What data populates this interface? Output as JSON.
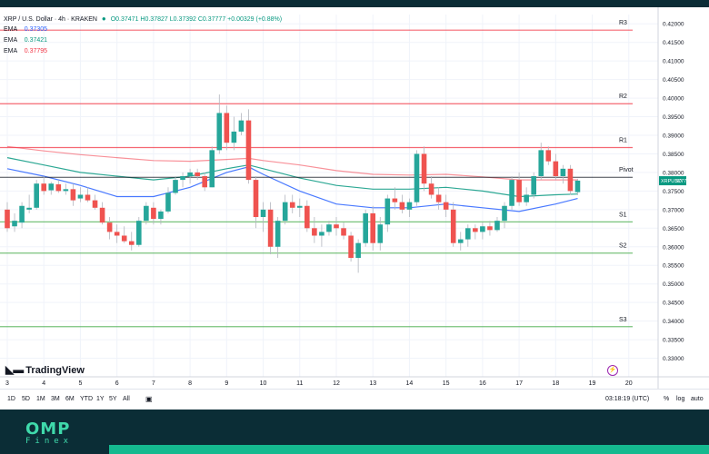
{
  "header": {
    "symbol_title": "XRP / U.S. Dollar · 4h · KRAKEN",
    "ohlc": "O0.37471 H0.37827 L0.37392 C0.37777 +0.00329 (+0.88%)"
  },
  "indicators": [
    {
      "label": "EMA",
      "value": "0.37305",
      "color": "#2962ff"
    },
    {
      "label": "EMA",
      "value": "0.37421",
      "color": "#089981"
    },
    {
      "label": "EMA",
      "value": "0.37795",
      "color": "#f23645"
    }
  ],
  "toolbar": {
    "timeframes": [
      "1D",
      "5D",
      "1M",
      "3M",
      "6M",
      "YTD",
      "1Y",
      "5Y",
      "All"
    ],
    "clock": "03:18:19 (UTC)",
    "percent": "%",
    "log": "log",
    "auto": "auto"
  },
  "watermark": "TradingView",
  "price_tag": {
    "symbol": "XRPUSD",
    "value": "0.37777"
  },
  "brand": {
    "name": "OMP",
    "sub": "Finex"
  },
  "chart_data": {
    "type": "candlestick",
    "title": "XRP / U.S. Dollar · 4h · KRAKEN",
    "ylim": [
      0.325,
      0.4225
    ],
    "xlim": [
      3,
      21
    ],
    "y_ticks": [
      0.33,
      0.335,
      0.34,
      0.345,
      0.35,
      0.355,
      0.36,
      0.365,
      0.37,
      0.375,
      0.38,
      0.385,
      0.39,
      0.395,
      0.4,
      0.405,
      0.41,
      0.415,
      0.42
    ],
    "y_tick_labels": [
      "0.33000",
      "0.33500",
      "0.34000",
      "0.34500",
      "0.35000",
      "0.35500",
      "0.36000",
      "0.36500",
      "0.37000",
      "0.37500",
      "0.38000",
      "0.38500",
      "0.39000",
      "0.39500",
      "0.40000",
      "0.40500",
      "0.41000",
      "0.41500",
      "0.42000"
    ],
    "x_ticks": [
      3,
      4,
      5,
      6,
      7,
      8,
      9,
      10,
      11,
      12,
      13,
      14,
      15,
      16,
      17,
      18,
      19,
      20
    ],
    "x_tick_labels": [
      "3",
      "4",
      "5",
      "6",
      "7",
      "8",
      "9",
      "10",
      "11",
      "12",
      "13",
      "14",
      "15",
      "16",
      "17",
      "18",
      "19",
      "20"
    ],
    "pivot_levels": [
      {
        "label": "R3",
        "value": 0.4183,
        "color": "#f23645"
      },
      {
        "label": "R2",
        "value": 0.3985,
        "color": "#f23645"
      },
      {
        "label": "R1",
        "value": 0.3867,
        "color": "#f23645"
      },
      {
        "label": "Pivot",
        "value": 0.3787,
        "color": "#131722"
      },
      {
        "label": "S1",
        "value": 0.3667,
        "color": "#4caf50"
      },
      {
        "label": "S2",
        "value": 0.3583,
        "color": "#4caf50"
      },
      {
        "label": "S3",
        "value": 0.3385,
        "color": "#4caf50"
      }
    ],
    "candles": [
      {
        "x": 3.0,
        "o": 0.37,
        "h": 0.372,
        "l": 0.364,
        "c": 0.365
      },
      {
        "x": 3.2,
        "o": 0.3655,
        "h": 0.369,
        "l": 0.364,
        "c": 0.367
      },
      {
        "x": 3.4,
        "o": 0.3665,
        "h": 0.372,
        "l": 0.365,
        "c": 0.371
      },
      {
        "x": 3.6,
        "o": 0.37,
        "h": 0.374,
        "l": 0.369,
        "c": 0.3705
      },
      {
        "x": 3.8,
        "o": 0.3705,
        "h": 0.378,
        "l": 0.37,
        "c": 0.377
      },
      {
        "x": 4.0,
        "o": 0.377,
        "h": 0.379,
        "l": 0.374,
        "c": 0.375
      },
      {
        "x": 4.2,
        "o": 0.3752,
        "h": 0.3775,
        "l": 0.374,
        "c": 0.377
      },
      {
        "x": 4.4,
        "o": 0.3768,
        "h": 0.378,
        "l": 0.3745,
        "c": 0.375
      },
      {
        "x": 4.6,
        "o": 0.375,
        "h": 0.377,
        "l": 0.374,
        "c": 0.3755
      },
      {
        "x": 4.8,
        "o": 0.3755,
        "h": 0.377,
        "l": 0.371,
        "c": 0.3725
      },
      {
        "x": 5.0,
        "o": 0.373,
        "h": 0.376,
        "l": 0.372,
        "c": 0.374
      },
      {
        "x": 5.2,
        "o": 0.374,
        "h": 0.376,
        "l": 0.372,
        "c": 0.3725
      },
      {
        "x": 5.4,
        "o": 0.3725,
        "h": 0.374,
        "l": 0.37,
        "c": 0.3705
      },
      {
        "x": 5.6,
        "o": 0.3705,
        "h": 0.372,
        "l": 0.366,
        "c": 0.3665
      },
      {
        "x": 5.8,
        "o": 0.3665,
        "h": 0.368,
        "l": 0.362,
        "c": 0.364
      },
      {
        "x": 6.0,
        "o": 0.364,
        "h": 0.366,
        "l": 0.361,
        "c": 0.363
      },
      {
        "x": 6.2,
        "o": 0.363,
        "h": 0.3655,
        "l": 0.361,
        "c": 0.3615
      },
      {
        "x": 6.4,
        "o": 0.3615,
        "h": 0.364,
        "l": 0.359,
        "c": 0.3605
      },
      {
        "x": 6.6,
        "o": 0.3605,
        "h": 0.368,
        "l": 0.36,
        "c": 0.367
      },
      {
        "x": 6.8,
        "o": 0.367,
        "h": 0.372,
        "l": 0.366,
        "c": 0.371
      },
      {
        "x": 7.0,
        "o": 0.3705,
        "h": 0.372,
        "l": 0.366,
        "c": 0.3675
      },
      {
        "x": 7.2,
        "o": 0.3675,
        "h": 0.37,
        "l": 0.366,
        "c": 0.3695
      },
      {
        "x": 7.4,
        "o": 0.3695,
        "h": 0.376,
        "l": 0.369,
        "c": 0.3745
      },
      {
        "x": 7.6,
        "o": 0.3745,
        "h": 0.379,
        "l": 0.374,
        "c": 0.378
      },
      {
        "x": 7.8,
        "o": 0.378,
        "h": 0.38,
        "l": 0.376,
        "c": 0.379
      },
      {
        "x": 8.0,
        "o": 0.379,
        "h": 0.381,
        "l": 0.377,
        "c": 0.38
      },
      {
        "x": 8.2,
        "o": 0.38,
        "h": 0.381,
        "l": 0.378,
        "c": 0.379
      },
      {
        "x": 8.4,
        "o": 0.379,
        "h": 0.38,
        "l": 0.375,
        "c": 0.376
      },
      {
        "x": 8.6,
        "o": 0.376,
        "h": 0.387,
        "l": 0.376,
        "c": 0.386
      },
      {
        "x": 8.8,
        "o": 0.386,
        "h": 0.401,
        "l": 0.385,
        "c": 0.396
      },
      {
        "x": 9.0,
        "o": 0.396,
        "h": 0.398,
        "l": 0.386,
        "c": 0.388
      },
      {
        "x": 9.2,
        "o": 0.388,
        "h": 0.395,
        "l": 0.386,
        "c": 0.391
      },
      {
        "x": 9.4,
        "o": 0.391,
        "h": 0.396,
        "l": 0.39,
        "c": 0.394
      },
      {
        "x": 9.6,
        "o": 0.394,
        "h": 0.397,
        "l": 0.377,
        "c": 0.378
      },
      {
        "x": 9.8,
        "o": 0.378,
        "h": 0.379,
        "l": 0.365,
        "c": 0.368
      },
      {
        "x": 10.0,
        "o": 0.368,
        "h": 0.372,
        "l": 0.364,
        "c": 0.37
      },
      {
        "x": 10.2,
        "o": 0.37,
        "h": 0.372,
        "l": 0.358,
        "c": 0.36
      },
      {
        "x": 10.4,
        "o": 0.36,
        "h": 0.368,
        "l": 0.357,
        "c": 0.367
      },
      {
        "x": 10.6,
        "o": 0.367,
        "h": 0.374,
        "l": 0.366,
        "c": 0.372
      },
      {
        "x": 10.8,
        "o": 0.372,
        "h": 0.374,
        "l": 0.369,
        "c": 0.3705
      },
      {
        "x": 11.0,
        "o": 0.3705,
        "h": 0.373,
        "l": 0.368,
        "c": 0.371
      },
      {
        "x": 11.2,
        "o": 0.371,
        "h": 0.3725,
        "l": 0.364,
        "c": 0.365
      },
      {
        "x": 11.4,
        "o": 0.365,
        "h": 0.368,
        "l": 0.361,
        "c": 0.363
      },
      {
        "x": 11.6,
        "o": 0.363,
        "h": 0.366,
        "l": 0.36,
        "c": 0.364
      },
      {
        "x": 11.8,
        "o": 0.364,
        "h": 0.367,
        "l": 0.363,
        "c": 0.366
      },
      {
        "x": 12.0,
        "o": 0.366,
        "h": 0.368,
        "l": 0.363,
        "c": 0.365
      },
      {
        "x": 12.2,
        "o": 0.365,
        "h": 0.3665,
        "l": 0.362,
        "c": 0.363
      },
      {
        "x": 12.4,
        "o": 0.363,
        "h": 0.364,
        "l": 0.356,
        "c": 0.357
      },
      {
        "x": 12.6,
        "o": 0.357,
        "h": 0.362,
        "l": 0.353,
        "c": 0.361
      },
      {
        "x": 12.8,
        "o": 0.361,
        "h": 0.37,
        "l": 0.36,
        "c": 0.369
      },
      {
        "x": 13.0,
        "o": 0.369,
        "h": 0.371,
        "l": 0.359,
        "c": 0.361
      },
      {
        "x": 13.2,
        "o": 0.361,
        "h": 0.368,
        "l": 0.359,
        "c": 0.366
      },
      {
        "x": 13.4,
        "o": 0.366,
        "h": 0.374,
        "l": 0.364,
        "c": 0.373
      },
      {
        "x": 13.6,
        "o": 0.373,
        "h": 0.376,
        "l": 0.37,
        "c": 0.372
      },
      {
        "x": 13.8,
        "o": 0.372,
        "h": 0.374,
        "l": 0.369,
        "c": 0.37
      },
      {
        "x": 14.0,
        "o": 0.37,
        "h": 0.373,
        "l": 0.368,
        "c": 0.372
      },
      {
        "x": 14.2,
        "o": 0.372,
        "h": 0.386,
        "l": 0.371,
        "c": 0.385
      },
      {
        "x": 14.4,
        "o": 0.385,
        "h": 0.387,
        "l": 0.375,
        "c": 0.377
      },
      {
        "x": 14.6,
        "o": 0.377,
        "h": 0.379,
        "l": 0.373,
        "c": 0.374
      },
      {
        "x": 14.8,
        "o": 0.374,
        "h": 0.376,
        "l": 0.37,
        "c": 0.372
      },
      {
        "x": 15.0,
        "o": 0.372,
        "h": 0.374,
        "l": 0.368,
        "c": 0.37
      },
      {
        "x": 15.2,
        "o": 0.37,
        "h": 0.372,
        "l": 0.36,
        "c": 0.361
      },
      {
        "x": 15.4,
        "o": 0.361,
        "h": 0.364,
        "l": 0.359,
        "c": 0.362
      },
      {
        "x": 15.6,
        "o": 0.362,
        "h": 0.366,
        "l": 0.36,
        "c": 0.365
      },
      {
        "x": 15.8,
        "o": 0.365,
        "h": 0.366,
        "l": 0.362,
        "c": 0.364
      },
      {
        "x": 16.0,
        "o": 0.364,
        "h": 0.3665,
        "l": 0.362,
        "c": 0.3655
      },
      {
        "x": 16.2,
        "o": 0.3655,
        "h": 0.367,
        "l": 0.363,
        "c": 0.3645
      },
      {
        "x": 16.4,
        "o": 0.3645,
        "h": 0.368,
        "l": 0.364,
        "c": 0.367
      },
      {
        "x": 16.6,
        "o": 0.367,
        "h": 0.372,
        "l": 0.365,
        "c": 0.371
      },
      {
        "x": 16.8,
        "o": 0.371,
        "h": 0.379,
        "l": 0.37,
        "c": 0.378
      },
      {
        "x": 17.0,
        "o": 0.378,
        "h": 0.38,
        "l": 0.371,
        "c": 0.372
      },
      {
        "x": 17.2,
        "o": 0.372,
        "h": 0.376,
        "l": 0.371,
        "c": 0.374
      },
      {
        "x": 17.4,
        "o": 0.374,
        "h": 0.38,
        "l": 0.373,
        "c": 0.379
      },
      {
        "x": 17.6,
        "o": 0.379,
        "h": 0.388,
        "l": 0.378,
        "c": 0.386
      },
      {
        "x": 17.8,
        "o": 0.386,
        "h": 0.387,
        "l": 0.382,
        "c": 0.383
      },
      {
        "x": 18.0,
        "o": 0.383,
        "h": 0.385,
        "l": 0.378,
        "c": 0.379
      },
      {
        "x": 18.2,
        "o": 0.379,
        "h": 0.382,
        "l": 0.377,
        "c": 0.381
      },
      {
        "x": 18.4,
        "o": 0.381,
        "h": 0.382,
        "l": 0.374,
        "c": 0.375
      },
      {
        "x": 18.6,
        "o": 0.3747,
        "h": 0.3783,
        "l": 0.3739,
        "c": 0.3778
      }
    ],
    "ema_series": [
      {
        "color": "#2962ff",
        "points": [
          [
            3,
            0.381
          ],
          [
            4,
            0.379
          ],
          [
            5,
            0.3765
          ],
          [
            6,
            0.3735
          ],
          [
            7,
            0.3735
          ],
          [
            8,
            0.376
          ],
          [
            9,
            0.38
          ],
          [
            9.6,
            0.3815
          ],
          [
            10,
            0.3795
          ],
          [
            11,
            0.375
          ],
          [
            12,
            0.3715
          ],
          [
            13,
            0.3705
          ],
          [
            14,
            0.3705
          ],
          [
            15,
            0.3715
          ],
          [
            16,
            0.3705
          ],
          [
            17,
            0.3695
          ],
          [
            18,
            0.3715
          ],
          [
            18.6,
            0.373
          ]
        ]
      },
      {
        "color": "#089981",
        "points": [
          [
            3,
            0.384
          ],
          [
            4,
            0.382
          ],
          [
            5,
            0.38
          ],
          [
            6,
            0.379
          ],
          [
            7,
            0.378
          ],
          [
            8,
            0.379
          ],
          [
            9,
            0.381
          ],
          [
            9.6,
            0.382
          ],
          [
            10,
            0.381
          ],
          [
            11,
            0.3785
          ],
          [
            12,
            0.3765
          ],
          [
            13,
            0.3755
          ],
          [
            14,
            0.3755
          ],
          [
            15,
            0.376
          ],
          [
            16,
            0.375
          ],
          [
            17,
            0.3735
          ],
          [
            18,
            0.374
          ],
          [
            18.6,
            0.3742
          ]
        ]
      },
      {
        "color": "#f23645",
        "points": [
          [
            3,
            0.387
          ],
          [
            4,
            0.3858
          ],
          [
            5,
            0.3848
          ],
          [
            6,
            0.384
          ],
          [
            7,
            0.3832
          ],
          [
            8,
            0.383
          ],
          [
            9,
            0.3835
          ],
          [
            9.6,
            0.3838
          ],
          [
            10,
            0.3832
          ],
          [
            11,
            0.382
          ],
          [
            12,
            0.3805
          ],
          [
            13,
            0.3795
          ],
          [
            14,
            0.3793
          ],
          [
            15,
            0.3795
          ],
          [
            16,
            0.3788
          ],
          [
            17,
            0.378
          ],
          [
            18,
            0.378
          ],
          [
            18.6,
            0.378
          ]
        ]
      }
    ]
  }
}
